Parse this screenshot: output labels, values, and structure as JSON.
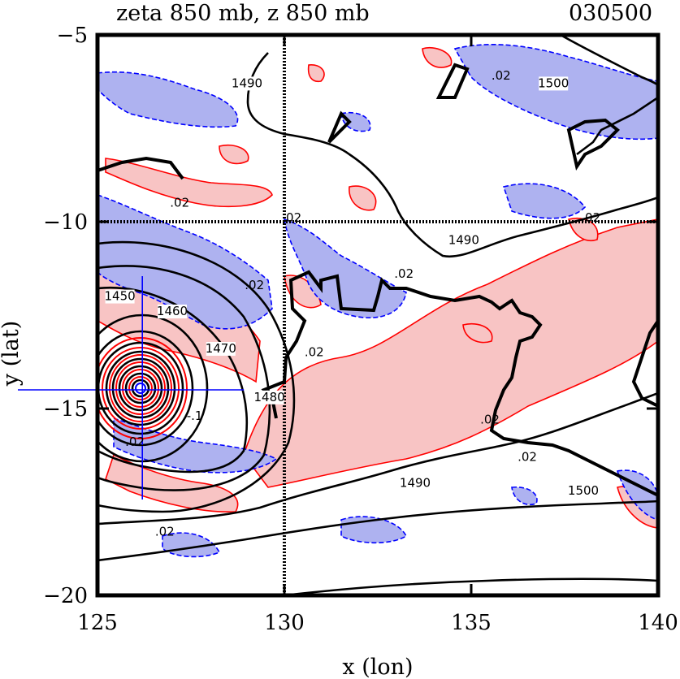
{
  "chart_data": {
    "type": "contour",
    "title": "zeta 850 mb, z 850 mb",
    "timestamp": "030500",
    "xlabel": "x (lon)",
    "ylabel": "y (lat)",
    "xlim": [
      125,
      140
    ],
    "ylim": [
      -20,
      -5
    ],
    "xticks": [
      125,
      130,
      135,
      140
    ],
    "yticks": [
      -5,
      -10,
      -15,
      -20
    ],
    "x_tick_labels": [
      "125",
      "130",
      "135",
      "140"
    ],
    "y_tick_labels": [
      "−5",
      "−10",
      "−15",
      "−20"
    ],
    "reference_lines": {
      "x": 130,
      "y": -10
    },
    "storm_center": {
      "lon": 126.2,
      "lat": -14.5
    },
    "colors": {
      "positive_fill": "#f8c4c4",
      "positive_line": "#ff0000",
      "negative_fill": "#aeb2f0",
      "negative_line": "#0000ff",
      "height_contour": "#000000"
    },
    "height_contour_labels": [
      {
        "text": "1490",
        "lon": 133.5,
        "lat": -17.1
      },
      {
        "text": "1500",
        "lon": 138.0,
        "lat": -17.3
      },
      {
        "text": "1480",
        "lon": 129.6,
        "lat": -14.8
      },
      {
        "text": "1470",
        "lon": 128.3,
        "lat": -13.5
      },
      {
        "text": "1460",
        "lon": 127.0,
        "lat": -12.5
      },
      {
        "text": "1450",
        "lon": 125.6,
        "lat": -12.1
      },
      {
        "text": "1490",
        "lon": 134.8,
        "lat": -10.6
      },
      {
        "text": "1490",
        "lon": 129.0,
        "lat": -6.4
      },
      {
        "text": "1500",
        "lon": 137.2,
        "lat": -6.4
      }
    ],
    "zeta_contour_labels": [
      {
        "text": ".02",
        "lon": 127.2,
        "lat": -9.6
      },
      {
        "text": ".02",
        "lon": 129.2,
        "lat": -11.8
      },
      {
        "text": ".02",
        "lon": 130.2,
        "lat": -10.0
      },
      {
        "text": ".02",
        "lon": 133.2,
        "lat": -11.5
      },
      {
        "text": ".02",
        "lon": 130.8,
        "lat": -13.6
      },
      {
        "text": ".02",
        "lon": 135.5,
        "lat": -15.4
      },
      {
        "text": ".02",
        "lon": 136.5,
        "lat": -16.4
      },
      {
        "text": ".02",
        "lon": 135.8,
        "lat": -6.2
      },
      {
        "text": ".02",
        "lon": 138.2,
        "lat": -10.0
      },
      {
        "text": ".02",
        "lon": 126.8,
        "lat": -18.4
      },
      {
        "text": ".02",
        "lon": 126.0,
        "lat": -16.0
      },
      {
        "text": "-.1",
        "lon": 127.6,
        "lat": -15.3
      }
    ]
  }
}
